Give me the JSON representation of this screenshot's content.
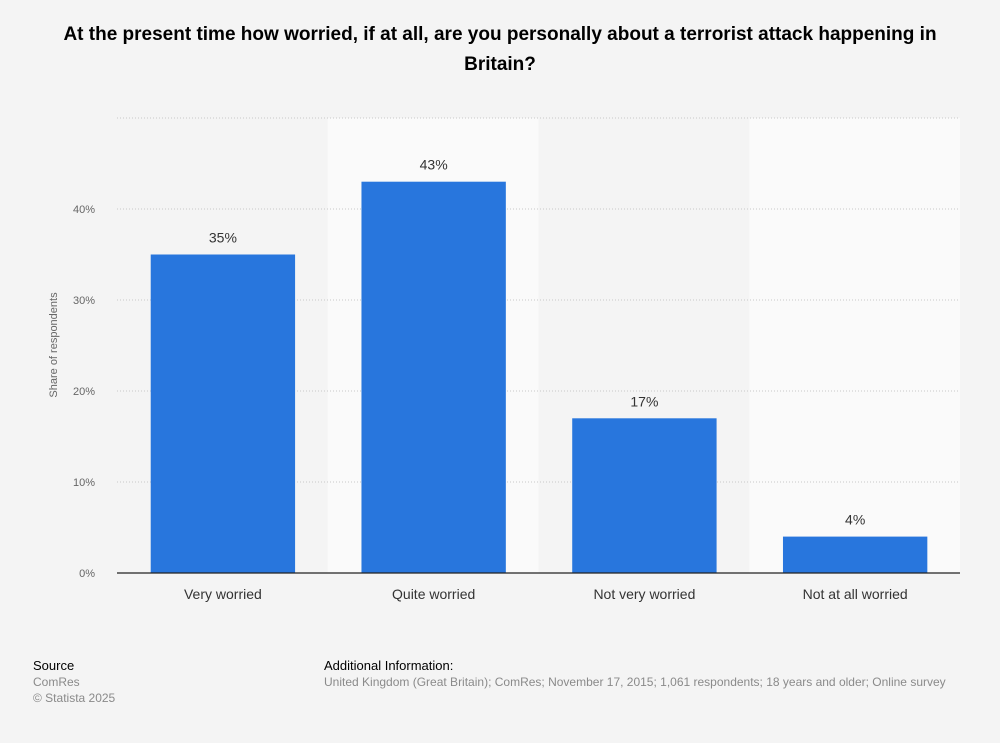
{
  "chart_data": {
    "type": "bar",
    "title": "At the present time how worried, if at all, are you personally about a terrorist attack happening in Britain?",
    "categories": [
      "Very worried",
      "Quite worried",
      "Not very worried",
      "Not at all worried"
    ],
    "values": [
      35,
      43,
      17,
      4
    ],
    "data_labels": [
      "35%",
      "43%",
      "17%",
      "4%"
    ],
    "xlabel": "",
    "ylabel": "Share of respondents",
    "ylim": [
      0,
      50
    ],
    "yticks": [
      0,
      10,
      20,
      30,
      40
    ],
    "ytick_labels": [
      "0%",
      "10%",
      "20%",
      "30%",
      "40%"
    ],
    "grid": true,
    "bar_color": "#2876dd"
  },
  "footer": {
    "source_heading": "Source",
    "source": "ComRes",
    "copyright": "© Statista 2025",
    "additional_heading": "Additional Information:",
    "additional": "United Kingdom (Great Britain); ComRes; November 17, 2015; 1,061 respondents; 18 years and older; Online survey"
  }
}
